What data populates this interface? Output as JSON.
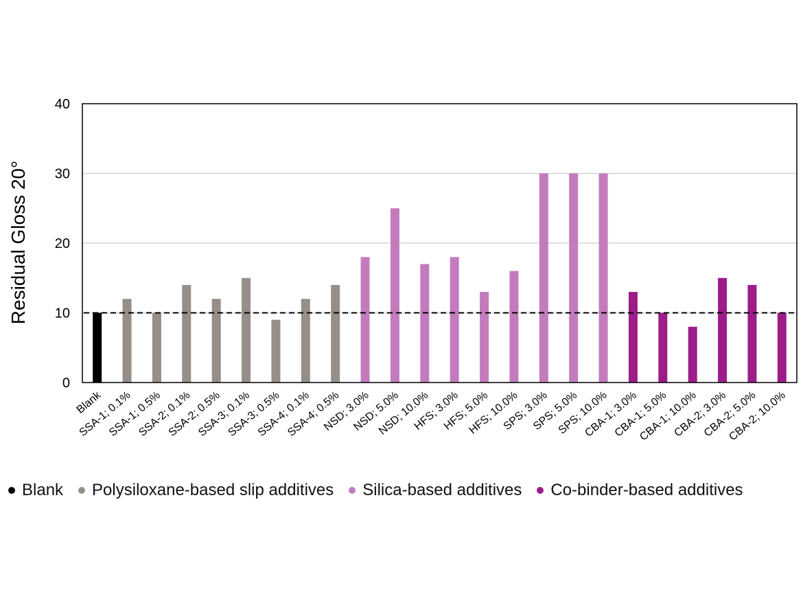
{
  "chart_data": {
    "type": "bar",
    "title": "",
    "xlabel": "",
    "ylabel": "Residual Gloss 20°",
    "ylim": [
      0,
      40
    ],
    "yticks": [
      0,
      10,
      20,
      30,
      40
    ],
    "grid": true,
    "reference_line": {
      "value": 10,
      "style": "dashed"
    },
    "legend_position": "bottom",
    "categories": [
      "Blank",
      "SSA-1; 0.1%",
      "SSA-1; 0.5%",
      "SSA-2; 0.1%",
      "SSA-2; 0.5%",
      "SSA-3; 0.1%",
      "SSA-3; 0.5%",
      "SSA-4; 0.1%",
      "SSA-4; 0.5%",
      "NSD; 3.0%",
      "NSD; 5.0%",
      "NSD; 10.0%",
      "HFS; 3.0%",
      "HFS; 5.0%",
      "HFS; 10.0%",
      "SPS; 3.0%",
      "SPS; 5.0%",
      "SPS; 10.0%",
      "CBA-1; 3.0%",
      "CBA-1; 5.0%",
      "CBA-1; 10.0%",
      "CBA-2; 3.0%",
      "CBA-2; 5.0%",
      "CBA-2; 10.0%"
    ],
    "values": [
      10,
      12,
      10,
      14,
      12,
      15,
      9,
      12,
      14,
      18,
      25,
      17,
      18,
      13,
      16,
      30,
      30,
      30,
      13,
      10,
      8,
      15,
      14,
      10
    ],
    "groups": [
      0,
      1,
      1,
      1,
      1,
      1,
      1,
      1,
      1,
      2,
      2,
      2,
      2,
      2,
      2,
      2,
      2,
      2,
      3,
      3,
      3,
      3,
      3,
      3
    ],
    "series": [
      {
        "name": "Blank",
        "color": "#000000"
      },
      {
        "name": "Polysiloxane-based slip additives",
        "color": "#968e88"
      },
      {
        "name": "Silica-based additives",
        "color": "#c27cbd"
      },
      {
        "name": "Co-binder-based additives",
        "color": "#9c1d8a"
      }
    ]
  }
}
